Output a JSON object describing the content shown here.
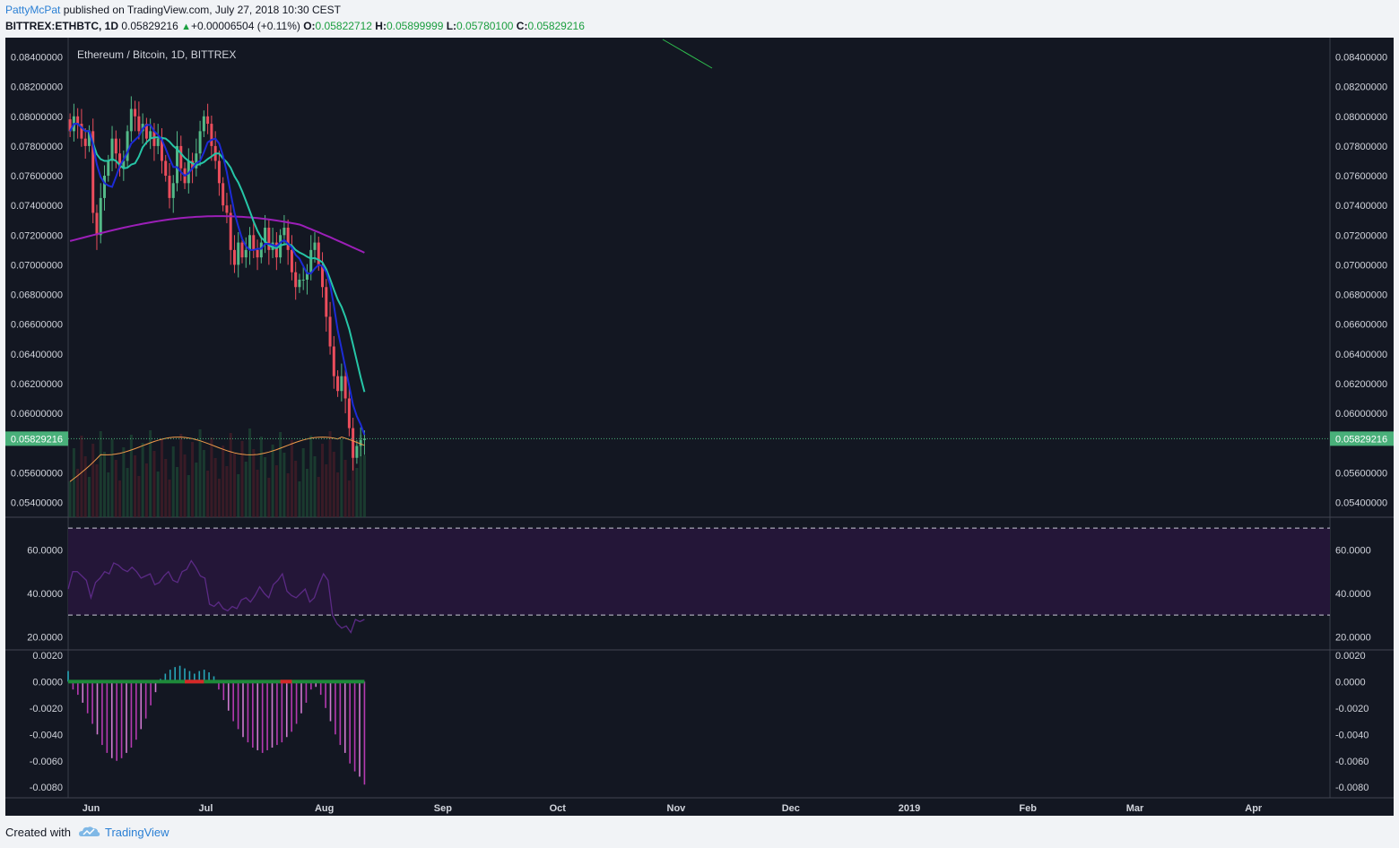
{
  "header": {
    "author": "PattyMcPat",
    "published_text": " published on TradingView.com, July 27, 2018 10:30 CEST",
    "symbol": "BITTREX:ETHBTC, 1D",
    "last": "0.05829216",
    "change": "+0.00006504 (+0.11%)",
    "o_label": "O:",
    "o_value": "0.05822712",
    "h_label": "H:",
    "h_value": "0.05899999",
    "l_label": "L:",
    "l_value": "0.05780100",
    "c_label": "C:",
    "c_value": "0.05829216"
  },
  "footer": {
    "created_with": "Created with",
    "brand": "TradingView",
    "logo_icon": "tradingview-cloud-icon"
  },
  "colors": {
    "background": "#131722",
    "axis_text": "#d1d4dc",
    "candle_up": "#53b987",
    "candle_down": "#eb4d5c",
    "ema_fast": "#1c2bd6",
    "ema_mid": "#26c6a7",
    "sma_slow": "#9c1fb8",
    "vwma": "#f09a4a",
    "rsi_band": "#241638",
    "rsi_line": "#5b2a85",
    "macd_hist": "#b53ab0",
    "price_tag": "#49b07a"
  },
  "chart_data": {
    "type": "candlestick",
    "title": "Ethereum / Bitcoin, 1D, BITTREX",
    "price_axis": {
      "range": [
        0.053,
        0.0853
      ],
      "ticks": [
        "0.08400000",
        "0.08200000",
        "0.08000000",
        "0.07800000",
        "0.07600000",
        "0.07400000",
        "0.07200000",
        "0.07000000",
        "0.06800000",
        "0.06600000",
        "0.06400000",
        "0.06200000",
        "0.06000000",
        "0.05600000",
        "0.05400000"
      ],
      "tick_values": [
        0.084,
        0.082,
        0.08,
        0.078,
        0.076,
        0.074,
        0.072,
        0.07,
        0.068,
        0.066,
        0.064,
        0.062,
        0.06,
        0.056,
        0.054
      ],
      "last_price_label": "0.05829216",
      "last_price": 0.05829216
    },
    "time_axis": {
      "labels": [
        "Jun",
        "Jul",
        "Aug",
        "Sep",
        "Oct",
        "Nov",
        "Dec",
        "2019",
        "Feb",
        "Mar",
        "Apr"
      ],
      "label_days": [
        6,
        36,
        67,
        98,
        128,
        159,
        189,
        220,
        251,
        279,
        310
      ],
      "start_date": "2018-05-27",
      "days_shown": 330
    },
    "daily_close": [
      0.079,
      0.08,
      0.0795,
      0.0785,
      0.078,
      0.079,
      0.0735,
      0.072,
      0.0745,
      0.076,
      0.077,
      0.0785,
      0.0775,
      0.0765,
      0.077,
      0.079,
      0.0805,
      0.08,
      0.079,
      0.0795,
      0.0785,
      0.079,
      0.078,
      0.0785,
      0.077,
      0.076,
      0.0745,
      0.0755,
      0.078,
      0.0765,
      0.0755,
      0.077,
      0.0765,
      0.0775,
      0.079,
      0.08,
      0.0795,
      0.078,
      0.077,
      0.0755,
      0.074,
      0.0735,
      0.071,
      0.07,
      0.0715,
      0.0705,
      0.071,
      0.072,
      0.071,
      0.0705,
      0.0715,
      0.0725,
      0.071,
      0.0715,
      0.0705,
      0.072,
      0.0725,
      0.071,
      0.0695,
      0.0685,
      0.069,
      0.069,
      0.0695,
      0.071,
      0.0715,
      0.07,
      0.0685,
      0.0665,
      0.0645,
      0.0625,
      0.0615,
      0.0625,
      0.061,
      0.059,
      0.057,
      0.0578,
      0.0582,
      0.0583
    ],
    "indicators": {
      "ema_fast_end": 0.06,
      "ema_mid_end": 0.0638,
      "sma_slow_end": 0.0715,
      "vwma_end": 0.057
    },
    "rsi": {
      "axis_ticks": [
        "60.0000",
        "40.0000",
        "20.0000"
      ],
      "tick_values": [
        60,
        40,
        20
      ],
      "range": [
        14,
        75
      ],
      "upper_band": 70,
      "lower_band": 30,
      "values": [
        42,
        50,
        50,
        48,
        46,
        38,
        45,
        47,
        50,
        49,
        54,
        53,
        51,
        50,
        52,
        50,
        47,
        48,
        49,
        44,
        45,
        48,
        50,
        46,
        45,
        50,
        51,
        55,
        52,
        48,
        47,
        35,
        34,
        36,
        33,
        32,
        34,
        33,
        37,
        38,
        36,
        39,
        43,
        40,
        38,
        44,
        46,
        49,
        41,
        39,
        38,
        40,
        42,
        36,
        38,
        44,
        49,
        46,
        30,
        26,
        24,
        25,
        22,
        28,
        27,
        28
      ]
    },
    "macd": {
      "axis_ticks": [
        "0.0020",
        "0.0000",
        "-0.0020",
        "-0.0040",
        "-0.0060",
        "-0.0080"
      ],
      "tick_values": [
        0.002,
        0.0,
        -0.002,
        -0.004,
        -0.006,
        -0.008
      ],
      "range": [
        -0.0088,
        0.0024
      ],
      "histogram": [
        0.0008,
        -0.0006,
        -0.001,
        -0.0016,
        -0.0024,
        -0.0032,
        -0.004,
        -0.0048,
        -0.0054,
        -0.0058,
        -0.006,
        -0.0058,
        -0.0054,
        -0.005,
        -0.0044,
        -0.0036,
        -0.0028,
        -0.0018,
        -0.0008,
        0.0002,
        0.0006,
        0.0009,
        0.0011,
        0.0012,
        0.001,
        0.0008,
        0.0006,
        0.0008,
        0.0009,
        0.0007,
        0.0004,
        -0.0006,
        -0.0014,
        -0.0022,
        -0.003,
        -0.0036,
        -0.0042,
        -0.0046,
        -0.005,
        -0.0052,
        -0.0054,
        -0.0052,
        -0.005,
        -0.0048,
        -0.0046,
        -0.0042,
        -0.0038,
        -0.0032,
        -0.0024,
        -0.0016,
        -0.0006,
        -0.0004,
        -0.001,
        -0.002,
        -0.003,
        -0.004,
        -0.0048,
        -0.0054,
        -0.0062,
        -0.0068,
        -0.0072,
        -0.0078
      ]
    }
  }
}
